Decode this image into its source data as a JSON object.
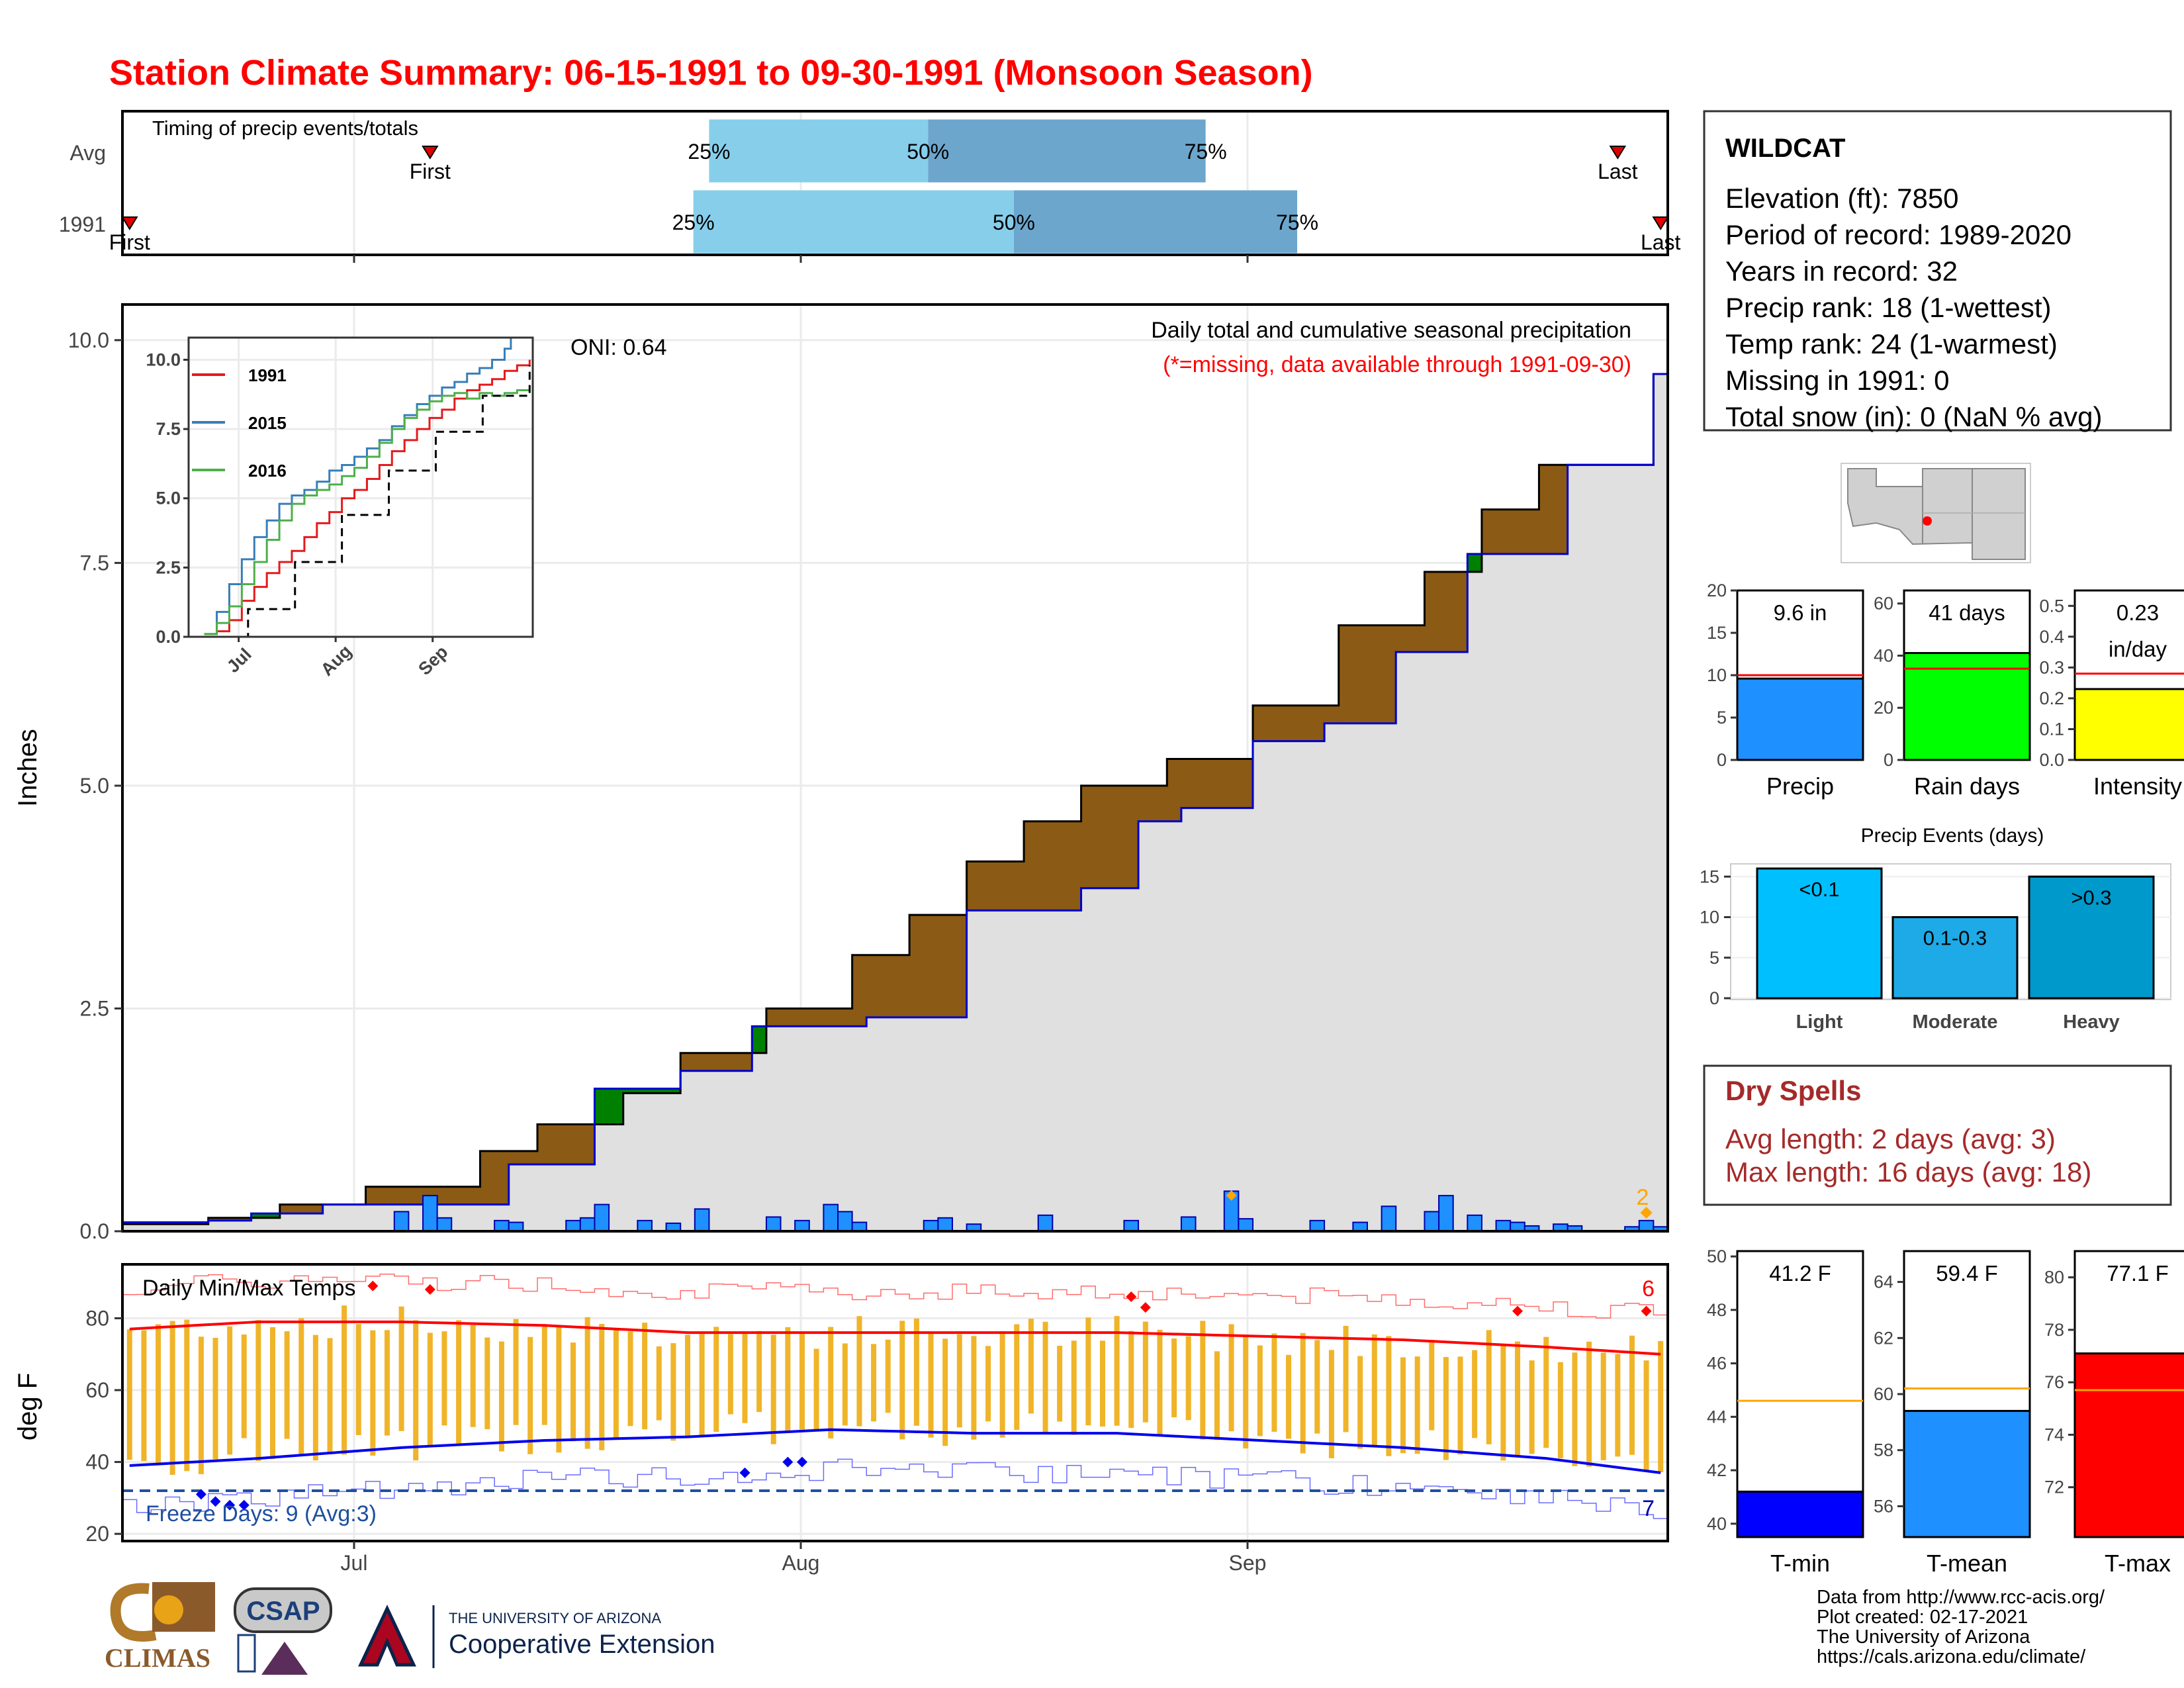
{
  "title": "Station Climate Summary: 06-15-1991 to 09-30-1991 (Monsoon Season)",
  "timing": {
    "label": "Timing of precip events/totals",
    "rows": [
      {
        "name": "Avg",
        "first_day": 22,
        "last_day": 105,
        "p25": 41.5,
        "p50": 56.8,
        "p75": 76.2,
        "pct_labels": [
          "25%",
          "50%",
          "75%"
        ],
        "first_label": "First",
        "last_label": "Last"
      },
      {
        "name": "1991",
        "first_day": 1,
        "last_day": 108,
        "p25": 40.4,
        "p50": 62.8,
        "p75": 82.6,
        "pct_labels": [
          "25%",
          "50%",
          "75%"
        ],
        "first_label": "First",
        "last_label": "Last"
      }
    ]
  },
  "precip_panel": {
    "caption": "Daily total and cumulative seasonal precipitation",
    "missing_note": "(*=missing, data available through 1991-09-30)",
    "ylabel": "Inches",
    "oni": "ONI: 0.64",
    "missing_count": "2",
    "yticks": [
      "0.0",
      "2.5",
      "5.0",
      "7.5",
      "10.0"
    ]
  },
  "inset": {
    "yticks": [
      "0.0",
      "2.5",
      "5.0",
      "7.5",
      "10.0"
    ],
    "xticks": [
      "Jul",
      "Aug",
      "Sep"
    ],
    "legend": [
      {
        "name": "1991",
        "color": "#e41a1c"
      },
      {
        "name": "2015",
        "color": "#377eb8"
      },
      {
        "name": "2016",
        "color": "#4daf4a"
      }
    ]
  },
  "temp_panel": {
    "label": "Daily Min/Max Temps",
    "ylabel": "deg F",
    "freeze_label": "Freeze Days: 9 (Avg:3)",
    "record_high_count": "6",
    "record_low_count": "7",
    "yticks": [
      "20",
      "40",
      "60",
      "80"
    ]
  },
  "x_ticks": [
    "Jul",
    "Aug",
    "Sep"
  ],
  "station": {
    "name": "WILDCAT",
    "lines": [
      "Elevation (ft): 7850",
      "Period of record: 1989-2020",
      "Years in record: 32",
      "Precip rank: 18 (1-wettest)",
      "Temp rank: 24 (1-warmest)",
      "Missing in 1991: 0",
      "Total snow (in): 0 (NaN % avg)"
    ]
  },
  "bars_precip": [
    {
      "label": "Precip",
      "value_label": "9.6 in",
      "color": "#1e90ff",
      "ticks": [
        "0",
        "5",
        "10",
        "15",
        "20"
      ]
    },
    {
      "label": "Rain days",
      "value_label": "41 days",
      "color": "#00ff00",
      "ticks": [
        "0",
        "20",
        "40",
        "60"
      ]
    },
    {
      "label": "Intensity",
      "value_label": "0.23",
      "value_label2": "in/day",
      "color": "#ffff00",
      "ticks": [
        "0.0",
        "0.1",
        "0.2",
        "0.3",
        "0.4",
        "0.5"
      ]
    }
  ],
  "events": {
    "title": "Precip Events (days)",
    "ticks": [
      "0",
      "5",
      "10",
      "15"
    ],
    "bars": [
      {
        "label": "Light",
        "value_label": "<0.1",
        "color": "#00bfff"
      },
      {
        "label": "Moderate",
        "value_label": "0.1-0.3",
        "color": "#1eaae6"
      },
      {
        "label": "Heavy",
        "value_label": ">0.3",
        "color": "#0099cc"
      }
    ]
  },
  "dry_spells": {
    "title": "Dry Spells",
    "avg": "Avg length: 2 days (avg: 3)",
    "max": "Max length: 16 days (avg: 18)"
  },
  "temps_summary": [
    {
      "label": "T-min",
      "value_label": "41.2 F",
      "color": "#0000ff",
      "ticks": [
        "40",
        "42",
        "44",
        "46",
        "48",
        "50"
      ]
    },
    {
      "label": "T-mean",
      "value_label": "59.4 F",
      "color": "#1e90ff",
      "ticks": [
        "56",
        "58",
        "60",
        "62",
        "64"
      ]
    },
    {
      "label": "T-max",
      "value_label": "77.1 F",
      "color": "#ff0000",
      "ticks": [
        "72",
        "74",
        "76",
        "78",
        "80"
      ]
    }
  ],
  "credits": [
    "Data from http://www.rcc-acis.org/",
    "Plot created: 02-17-2021",
    "The University of Arizona",
    "https://cals.arizona.edu/climate/"
  ],
  "logos": {
    "climas": "CLIMAS",
    "csap": "CSAP",
    "ua_top": "THE UNIVERSITY OF ARIZONA",
    "ua_bottom": "Cooperative Extension"
  },
  "chart_data": [
    {
      "type": "area",
      "title": "Daily total and cumulative seasonal precipitation",
      "ylabel": "Inches",
      "ylim": [
        0,
        10.4
      ],
      "x_range": [
        "1991-06-15",
        "1991-09-30"
      ],
      "series": [
        {
          "name": "1991",
          "x": [
            1,
            7,
            10,
            15,
            28,
            34,
            40,
            45,
            53,
            60,
            68,
            72,
            75,
            80,
            85,
            90,
            95,
            102,
            108
          ],
          "y": [
            0.1,
            0.12,
            0.2,
            0.3,
            0.75,
            1.6,
            1.8,
            2.3,
            2.4,
            3.6,
            3.85,
            4.6,
            4.75,
            5.5,
            5.7,
            6.5,
            7.6,
            8.6,
            9.62
          ]
        },
        {
          "name": "Avg",
          "x": [
            1,
            7,
            12,
            18,
            26,
            30,
            36,
            40,
            46,
            52,
            56,
            60,
            64,
            68,
            74,
            80,
            86,
            92,
            96,
            100,
            108
          ],
          "y": [
            0.08,
            0.15,
            0.3,
            0.5,
            0.9,
            1.2,
            1.55,
            2.0,
            2.5,
            3.1,
            3.55,
            4.15,
            4.6,
            5.0,
            5.3,
            5.9,
            6.8,
            7.4,
            8.1,
            8.6,
            9.62
          ]
        }
      ],
      "daily_bars": {
        "x": [
          20,
          22,
          23,
          27,
          28,
          32,
          33,
          34,
          37,
          39,
          41,
          46,
          48,
          50,
          51,
          52,
          57,
          58,
          60,
          65,
          71,
          75,
          78,
          79,
          84,
          87,
          89,
          92,
          93,
          95,
          97,
          98,
          99,
          101,
          102,
          106,
          107,
          108
        ],
        "values": [
          0.22,
          0.4,
          0.15,
          0.12,
          0.1,
          0.12,
          0.15,
          0.3,
          0.12,
          0.09,
          0.25,
          0.16,
          0.12,
          0.3,
          0.22,
          0.1,
          0.12,
          0.15,
          0.08,
          0.18,
          0.12,
          0.16,
          0.45,
          0.14,
          0.12,
          0.1,
          0.28,
          0.22,
          0.4,
          0.18,
          0.12,
          0.1,
          0.06,
          0.08,
          0.06,
          0.05,
          0.12,
          0.05
        ]
      }
    },
    {
      "type": "line",
      "title": "",
      "series": [
        {
          "name": "1991",
          "color": "#e41a1c",
          "x": [
            6,
            10,
            14,
            18,
            22,
            26,
            30,
            34,
            38,
            42,
            46,
            50,
            54,
            58,
            62,
            66,
            70,
            74,
            78,
            82,
            86,
            90,
            94,
            98,
            102,
            106,
            110
          ],
          "y": [
            0.1,
            0.2,
            0.6,
            1.3,
            1.8,
            2.3,
            2.7,
            3.1,
            3.6,
            4.1,
            4.5,
            5.0,
            5.3,
            5.7,
            6.2,
            6.7,
            7.1,
            7.5,
            7.9,
            8.2,
            8.6,
            8.9,
            9.1,
            9.3,
            9.6,
            9.8,
            10.0
          ]
        },
        {
          "name": "2015",
          "color": "#377eb8",
          "x": [
            6,
            10,
            14,
            18,
            22,
            26,
            30,
            34,
            38,
            42,
            46,
            50,
            54,
            58,
            62,
            66,
            70,
            74,
            78,
            82,
            86,
            90,
            94,
            98,
            102,
            104
          ],
          "y": [
            0.1,
            0.9,
            1.9,
            2.8,
            3.6,
            4.2,
            4.8,
            5.1,
            5.3,
            5.6,
            6.0,
            6.2,
            6.5,
            6.8,
            7.1,
            7.6,
            8.0,
            8.4,
            8.7,
            9.0,
            9.2,
            9.5,
            9.7,
            10.0,
            10.4,
            10.8
          ]
        },
        {
          "name": "2016",
          "color": "#4daf4a",
          "x": [
            6,
            10,
            14,
            18,
            22,
            26,
            30,
            34,
            38,
            42,
            46,
            50,
            54,
            58,
            62,
            66,
            70,
            74,
            78,
            82,
            86,
            90,
            94,
            98,
            102,
            106,
            110
          ],
          "y": [
            0.1,
            0.5,
            1.1,
            1.9,
            2.7,
            3.5,
            4.2,
            4.8,
            5.1,
            5.3,
            5.5,
            5.8,
            6.1,
            6.5,
            7.0,
            7.5,
            7.9,
            8.2,
            8.5,
            8.7,
            8.8,
            8.6,
            8.8,
            8.7,
            8.8,
            8.9,
            8.9
          ]
        },
        {
          "name": "Avg",
          "color": "#000000",
          "x": [
            6,
            20,
            35,
            50,
            65,
            80,
            95,
            110
          ],
          "y": [
            0.0,
            1.0,
            2.7,
            4.4,
            6.0,
            7.4,
            8.7,
            9.8
          ]
        }
      ],
      "ylim": [
        0,
        10.8
      ]
    },
    {
      "type": "line",
      "title": "Daily Min/Max Temps",
      "ylabel": "deg F",
      "ylim": [
        18,
        95
      ],
      "avg_max": {
        "x": [
          1,
          10,
          20,
          30,
          40,
          50,
          60,
          70,
          80,
          90,
          100,
          108
        ],
        "y": [
          77,
          79,
          79,
          78,
          76,
          76,
          76,
          76,
          75,
          74,
          72,
          70
        ]
      },
      "avg_min": {
        "x": [
          1,
          10,
          20,
          30,
          40,
          50,
          60,
          70,
          80,
          90,
          100,
          108
        ],
        "y": [
          39,
          41,
          44,
          46,
          47,
          49,
          48,
          48,
          46,
          44,
          41,
          37
        ]
      },
      "freeze_threshold": 32,
      "freeze_days": 9,
      "record_highs": [
        {
          "x": 18,
          "y": 89
        },
        {
          "x": 22,
          "y": 88
        },
        {
          "x": 71,
          "y": 86
        },
        {
          "x": 72,
          "y": 83
        },
        {
          "x": 98,
          "y": 82
        },
        {
          "x": 107,
          "y": 82
        }
      ],
      "record_lows": [
        {
          "x": 6,
          "y": 31
        },
        {
          "x": 7,
          "y": 29
        },
        {
          "x": 8,
          "y": 28
        },
        {
          "x": 9,
          "y": 28
        },
        {
          "x": 44,
          "y": 37
        },
        {
          "x": 47,
          "y": 40
        },
        {
          "x": 48,
          "y": 40
        }
      ]
    },
    {
      "type": "bar",
      "title": "",
      "categories": [
        "Precip",
        "Rain days",
        "Intensity"
      ],
      "values": [
        9.6,
        41,
        0.23
      ],
      "averages": [
        10.0,
        35,
        0.28
      ],
      "ylims": [
        [
          0,
          20
        ],
        [
          0,
          65
        ],
        [
          0,
          0.55
        ]
      ]
    },
    {
      "type": "bar",
      "title": "Precip Events (days)",
      "categories": [
        "Light",
        "Moderate",
        "Heavy"
      ],
      "values": [
        16,
        10,
        15
      ],
      "ylim": [
        0,
        16
      ]
    },
    {
      "type": "bar",
      "title": "",
      "categories": [
        "T-min",
        "T-mean",
        "T-max"
      ],
      "values": [
        41.2,
        59.4,
        77.1
      ],
      "averages": [
        44.6,
        60.2,
        75.7
      ],
      "ylims": [
        [
          39.5,
          50.2
        ],
        [
          54.9,
          65.1
        ],
        [
          70.1,
          81.0
        ]
      ]
    }
  ]
}
